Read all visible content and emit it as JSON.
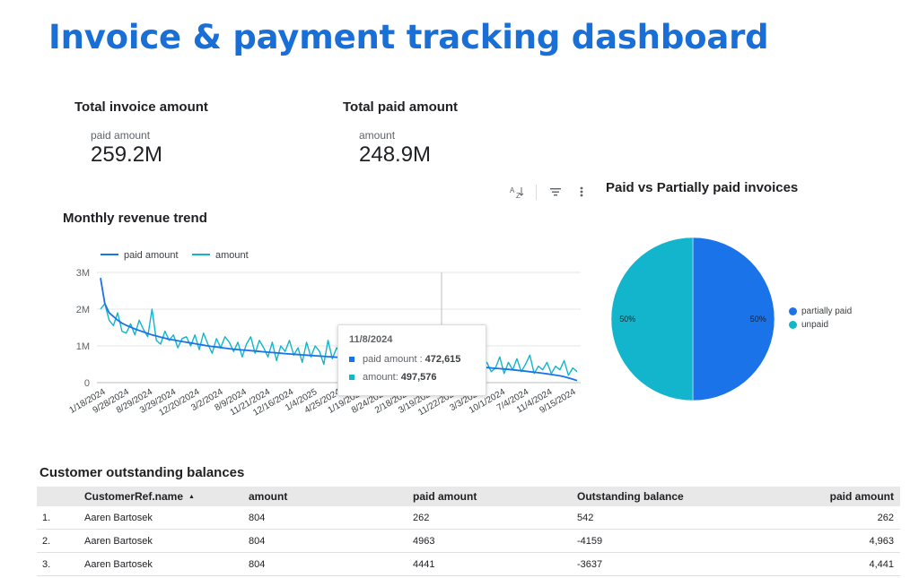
{
  "header": {
    "title": "Invoice & payment tracking dashboard"
  },
  "kpis": [
    {
      "title": "Total invoice amount",
      "label": "paid amount",
      "value": "259.2M"
    },
    {
      "title": "Total paid amount",
      "label": "amount",
      "value": "248.9M"
    }
  ],
  "toolbar": {
    "sort_icon": "AZ-sort-icon",
    "filter_icon": "filter-icon",
    "more_icon": "more-vert-icon"
  },
  "line_section": {
    "title": "Monthly revenue trend"
  },
  "pie_section": {
    "title": "Paid vs Partially paid invoices"
  },
  "tooltip": {
    "date": "11/8/2024",
    "rows": [
      {
        "label": "paid amount :",
        "value": "472,615",
        "color": "#1a73e8"
      },
      {
        "label": "amount:",
        "value": "497,576",
        "color": "#12b5cb"
      }
    ]
  },
  "chart_data": [
    {
      "type": "line",
      "title": "Monthly revenue trend",
      "xlabel": "",
      "ylabel": "",
      "ylim": [
        0,
        3000000
      ],
      "y_ticks": [
        "0",
        "1M",
        "2M",
        "3M"
      ],
      "x_ticks": [
        "1/18/2024",
        "9/28/2024",
        "8/29/2024",
        "3/29/2024",
        "12/20/2024",
        "3/2/2024",
        "8/9/2024",
        "11/21/2024",
        "12/16/2024",
        "1/4/2025",
        "4/25/2024",
        "1/19/2024",
        "8/24/2024",
        "2/18/2024",
        "3/19/2024",
        "11/22/2024",
        "3/3/2024",
        "10/1/2024",
        "7/4/2024",
        "11/4/2024",
        "9/15/2024"
      ],
      "legend": "top-left",
      "grid": true,
      "series": [
        {
          "name": "paid amount",
          "color": "#1a73e8",
          "values": [
            2850000,
            2150000,
            1900000,
            1800000,
            1700000,
            1620000,
            1560000,
            1510000,
            1460000,
            1420000,
            1380000,
            1340000,
            1300000,
            1270000,
            1240000,
            1210000,
            1180000,
            1160000,
            1140000,
            1120000,
            1100000,
            1080000,
            1060000,
            1040000,
            1020000,
            1000000,
            985000,
            970000,
            955000,
            940000,
            925000,
            910000,
            900000,
            890000,
            880000,
            870000,
            860000,
            850000,
            840000,
            830000,
            820000,
            810000,
            800000,
            790000,
            780000,
            772000,
            764000,
            756000,
            748000,
            740000,
            732000,
            724000,
            716000,
            708000,
            700000,
            692000,
            684000,
            676000,
            668000,
            660000,
            652000,
            644000,
            636000,
            628000,
            620000,
            612000,
            604000,
            596000,
            588000,
            580000,
            572000,
            564000,
            556000,
            548000,
            540000,
            532000,
            524000,
            516000,
            508000,
            500000,
            492000,
            484000,
            476000,
            468000,
            460000,
            452000,
            444000,
            436000,
            428000,
            420000,
            410000,
            400000,
            390000,
            380000,
            370000,
            360000,
            348000,
            336000,
            324000,
            312000,
            298000,
            284000,
            270000,
            255000,
            240000,
            222000,
            204000,
            185000,
            160000,
            130000,
            95000,
            55000
          ]
        },
        {
          "name": "amount",
          "color": "#12b5cb",
          "values": [
            2000000,
            2150000,
            1700000,
            1550000,
            1900000,
            1400000,
            1350000,
            1600000,
            1300000,
            1700000,
            1450000,
            1250000,
            2000000,
            1150000,
            1050000,
            1400000,
            1150000,
            1300000,
            950000,
            1200000,
            1250000,
            1000000,
            1300000,
            900000,
            1350000,
            1050000,
            800000,
            1200000,
            950000,
            1250000,
            1100000,
            850000,
            1100000,
            700000,
            1050000,
            1250000,
            800000,
            1150000,
            950000,
            700000,
            1100000,
            600000,
            1000000,
            850000,
            1150000,
            750000,
            950000,
            550000,
            1100000,
            700000,
            1000000,
            850000,
            500000,
            1150000,
            650000,
            950000,
            800000,
            600000,
            1000000,
            700000,
            1200000,
            850000,
            550000,
            900000,
            450000,
            1050000,
            700000,
            850000,
            600000,
            950000,
            500000,
            800000,
            600000,
            450000,
            750000,
            300000,
            650000,
            500000,
            700000,
            400000,
            600000,
            300000,
            550000,
            450000,
            250000,
            600000,
            350000,
            500000,
            250000,
            450000,
            550000,
            300000,
            400000,
            700000,
            250000,
            550000,
            350000,
            650000,
            300000,
            500000,
            750000,
            250000,
            450000,
            350000,
            550000,
            250000,
            450000,
            350000,
            600000,
            200000,
            400000,
            300000
          ]
        }
      ]
    },
    {
      "type": "pie",
      "title": "Paid vs Partially paid invoices",
      "legend": "right",
      "slices": [
        {
          "label": "partially paid",
          "value": 50,
          "display": "50%",
          "color": "#1a73e8"
        },
        {
          "label": "unpaid",
          "value": 50,
          "display": "50%",
          "color": "#12b5cb"
        }
      ]
    }
  ],
  "table": {
    "title": "Customer outstanding balances",
    "columns": [
      "",
      "CustomerRef.name",
      "amount",
      "paid amount",
      "Outstanding balance",
      "paid amount"
    ],
    "rows": [
      [
        "1.",
        "Aaren Bartosek",
        "804",
        "262",
        "542",
        "262"
      ],
      [
        "2.",
        "Aaren Bartosek",
        "804",
        "4963",
        "-4159",
        "4,963"
      ],
      [
        "3.",
        "Aaren Bartosek",
        "804",
        "4441",
        "-3637",
        "4,441"
      ]
    ]
  }
}
